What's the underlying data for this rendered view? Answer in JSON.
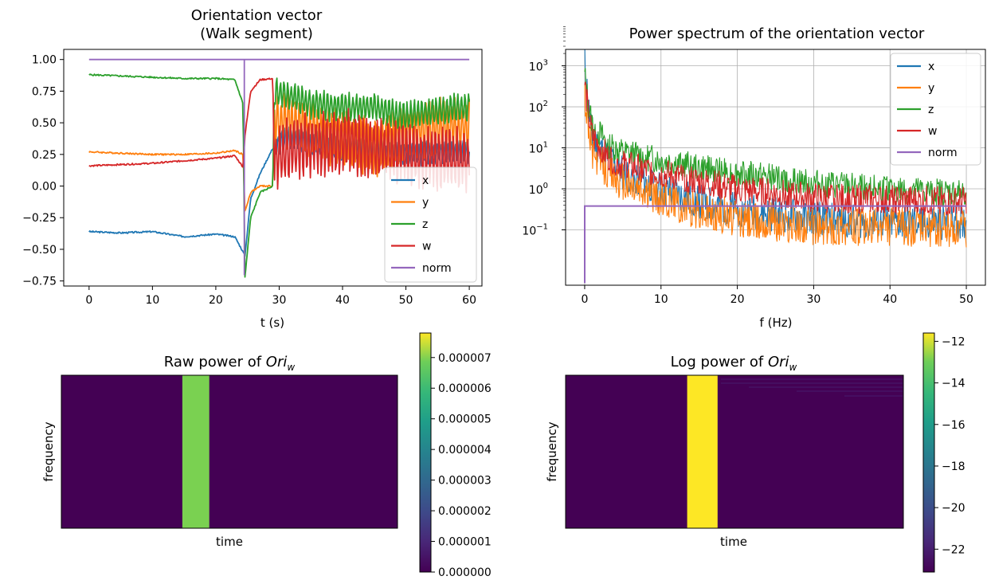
{
  "chart_data": [
    {
      "type": "line",
      "title": "Orientation vector",
      "subtitle": "(Walk segment)",
      "xlabel": "t (s)",
      "ylabel": "",
      "xlim": [
        -4,
        62
      ],
      "ylim": [
        -0.79,
        1.08
      ],
      "xticks": [
        0,
        10,
        20,
        30,
        40,
        50,
        60
      ],
      "yticks": [
        -0.75,
        -0.5,
        -0.25,
        0.0,
        0.25,
        0.5,
        0.75,
        1.0
      ],
      "ytick_labels": [
        "−0.75",
        "−0.50",
        "−0.25",
        "0.00",
        "0.25",
        "0.50",
        "0.75",
        "1.00"
      ],
      "grid": false,
      "legend": "lower right",
      "series": [
        {
          "name": "x",
          "color": "#1f77b4",
          "x": [
            0,
            5,
            10,
            15,
            20,
            23,
            24.3,
            24.6,
            25.5,
            27,
            29,
            29.2,
            31,
            35,
            40,
            45,
            50,
            55,
            60
          ],
          "y": [
            -0.36,
            -0.37,
            -0.36,
            -0.4,
            -0.38,
            -0.4,
            -0.52,
            -0.55,
            -0.1,
            0.1,
            0.3,
            0.3,
            0.38,
            0.35,
            0.3,
            0.28,
            0.25,
            0.26,
            0.27
          ]
        },
        {
          "name": "y",
          "color": "#ff7f0e",
          "x": [
            0,
            5,
            10,
            15,
            20,
            23,
            24.3,
            24.6,
            25.5,
            27,
            29,
            29.2,
            31,
            35,
            40,
            45,
            50,
            55,
            60
          ],
          "y": [
            0.27,
            0.26,
            0.25,
            0.25,
            0.26,
            0.28,
            0.25,
            -0.2,
            -0.05,
            0.0,
            0.0,
            0.5,
            0.52,
            0.45,
            0.38,
            0.3,
            0.42,
            0.46,
            0.45
          ]
        },
        {
          "name": "z",
          "color": "#2ca02c",
          "x": [
            0,
            5,
            10,
            15,
            20,
            23,
            24.3,
            24.6,
            25.5,
            27,
            29,
            29.2,
            31,
            35,
            40,
            45,
            50,
            55,
            60
          ],
          "y": [
            0.88,
            0.87,
            0.86,
            0.85,
            0.85,
            0.84,
            0.65,
            -0.72,
            -0.25,
            -0.05,
            0.0,
            0.75,
            0.72,
            0.65,
            0.62,
            0.62,
            0.55,
            0.6,
            0.62
          ]
        },
        {
          "name": "w",
          "color": "#d62728",
          "x": [
            0,
            5,
            10,
            15,
            20,
            23,
            24.3,
            24.6,
            25.5,
            27,
            29,
            29.2,
            31,
            35,
            40,
            45,
            50,
            55,
            60
          ],
          "y": [
            0.16,
            0.17,
            0.18,
            0.2,
            0.22,
            0.24,
            0.15,
            0.4,
            0.75,
            0.84,
            0.85,
            0.18,
            0.28,
            0.32,
            0.35,
            0.3,
            0.25,
            0.22,
            0.2
          ]
        },
        {
          "name": "norm",
          "color": "#9467bd",
          "x": [
            0,
            24.5,
            24.5,
            24.5,
            60
          ],
          "y": [
            1.0,
            1.0,
            -0.7,
            1.0,
            1.0
          ]
        }
      ]
    },
    {
      "type": "line",
      "title": "Power spectrum of the orientation vector",
      "xlabel": "f (Hz)",
      "ylabel": "",
      "xlim": [
        -2.5,
        52.5
      ],
      "ylim_log10": [
        -2.35,
        3.4
      ],
      "yscale": "log",
      "xticks": [
        0,
        10,
        20,
        30,
        40,
        50
      ],
      "yticks_log10": [
        -1,
        0,
        1,
        2,
        3
      ],
      "grid": true,
      "legend": "upper right",
      "series": [
        {
          "name": "x",
          "color": "#1f77b4",
          "f": [
            0,
            0.5,
            1,
            3,
            5,
            10,
            15,
            20,
            30,
            40,
            50
          ],
          "log10_power": [
            3.25,
            2.0,
            1.2,
            0.8,
            0.4,
            0.0,
            -0.3,
            -0.5,
            -0.7,
            -0.8,
            -0.8
          ]
        },
        {
          "name": "y",
          "color": "#ff7f0e",
          "f": [
            0,
            0.5,
            1,
            3,
            5,
            10,
            15,
            20,
            30,
            40,
            50
          ],
          "log10_power": [
            2.3,
            1.5,
            0.9,
            0.5,
            0.2,
            -0.2,
            -0.5,
            -0.7,
            -0.9,
            -0.9,
            -0.95
          ]
        },
        {
          "name": "z",
          "color": "#2ca02c",
          "f": [
            0,
            0.5,
            1,
            3,
            5,
            10,
            15,
            20,
            30,
            40,
            50
          ],
          "log10_power": [
            2.8,
            2.0,
            1.6,
            1.1,
            0.9,
            0.7,
            0.55,
            0.4,
            0.15,
            0.0,
            -0.1
          ]
        },
        {
          "name": "w",
          "color": "#d62728",
          "f": [
            0,
            0.5,
            1,
            3,
            5,
            10,
            15,
            20,
            30,
            40,
            50
          ],
          "log10_power": [
            2.6,
            1.8,
            1.3,
            0.8,
            0.6,
            0.4,
            0.2,
            0.0,
            -0.2,
            -0.25,
            -0.3
          ]
        },
        {
          "name": "norm",
          "color": "#9467bd",
          "f": [
            0,
            0,
            50
          ],
          "log10_power": [
            -2.3,
            -0.42,
            -0.42
          ]
        }
      ]
    },
    {
      "type": "heatmap",
      "title": "Raw power of Ori_w",
      "title_text": "Raw power of ",
      "title_math": "Ori",
      "title_sub": "w",
      "xlabel": "time",
      "ylabel": "frequency",
      "colormap": "viridis",
      "colorbar_range": [
        0,
        7.8e-06
      ],
      "colorbar_ticks": [
        "0.000000",
        "0.000001",
        "0.000002",
        "0.000003",
        "0.000004",
        "0.000005",
        "0.000006",
        "0.000007"
      ],
      "colorbar_tick_values": [
        0,
        1e-06,
        2e-06,
        3e-06,
        4e-06,
        5e-06,
        6e-06,
        7e-06
      ],
      "background_color": "#440154",
      "band_time_fraction": [
        0.36,
        0.44
      ],
      "band_color": "#7ad151",
      "band_value": 6.2e-06
    },
    {
      "type": "heatmap",
      "title": "Log power of Ori_w",
      "title_text": "Log power of ",
      "title_math": "Ori",
      "title_sub": "w",
      "xlabel": "time",
      "ylabel": "frequency",
      "colormap": "viridis",
      "colorbar_range": [
        -23.1,
        -11.6
      ],
      "colorbar_ticks": [
        "−12",
        "−14",
        "−16",
        "−18",
        "−20",
        "−22"
      ],
      "colorbar_tick_values": [
        -12,
        -14,
        -16,
        -18,
        -20,
        -22
      ],
      "background_color": "#440154",
      "band_time_fraction": [
        0.36,
        0.45
      ],
      "band_color": "#fde725",
      "band_value": -12
    }
  ]
}
